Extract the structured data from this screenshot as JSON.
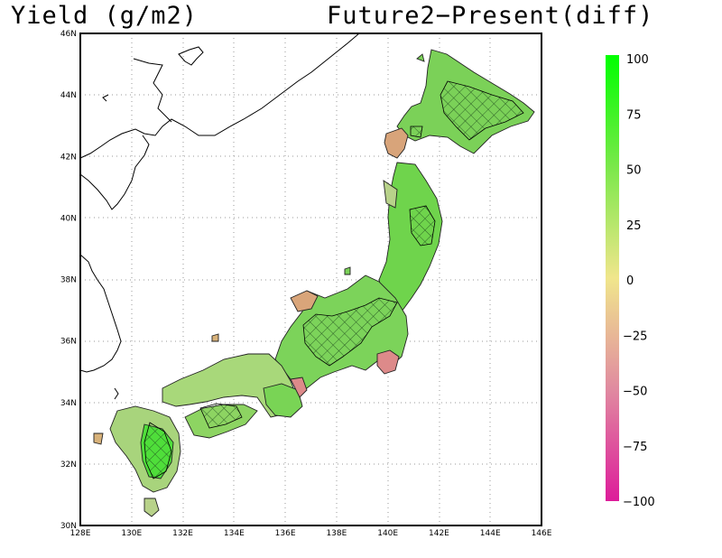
{
  "title_left": "Yield (g/m2)",
  "title_right": "Future2−Present(diff)",
  "map": {
    "lon_range": [
      128,
      146
    ],
    "lat_range": [
      30,
      46
    ],
    "lon_ticks": [
      "128E",
      "130E",
      "132E",
      "134E",
      "136E",
      "138E",
      "140E",
      "142E",
      "144E",
      "146E"
    ],
    "lat_ticks": [
      "30N",
      "32N",
      "34N",
      "36N",
      "38N",
      "40N",
      "42N",
      "44N",
      "46N"
    ],
    "grid": "dotted",
    "hatched_areas": "cross-hatch (significant increase)"
  },
  "colorbar": {
    "labels": [
      "100",
      "75",
      "50",
      "25",
      "0",
      "−25",
      "−50",
      "−75",
      "−100"
    ],
    "colors": {
      "high": "#00ff00",
      "mid": "#f0e68c",
      "low": "#dd1c9a"
    }
  }
}
